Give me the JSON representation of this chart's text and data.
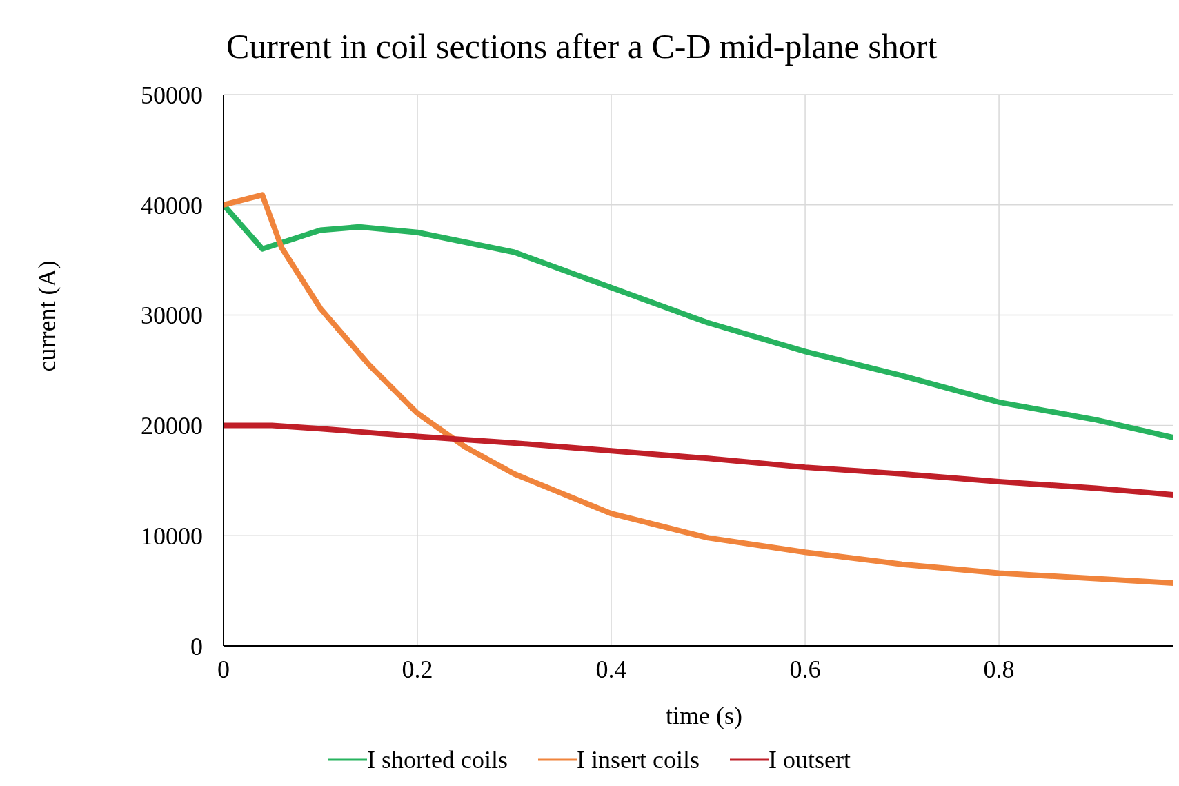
{
  "chart_data": {
    "type": "line",
    "title": "Current in coil sections after a C-D mid-plane short",
    "xlabel": "time (s)",
    "ylabel": "current (A)",
    "xlim": [
      0,
      0.98
    ],
    "xticks": [
      0,
      0.2,
      0.4,
      0.6,
      0.8
    ],
    "ylim": [
      0,
      50000
    ],
    "yticks": [
      0,
      10000,
      20000,
      30000,
      40000,
      50000
    ],
    "grid": true,
    "legend": "bottom",
    "marker": "none",
    "line_style": "solid",
    "series": [
      {
        "name": "I shorted coils",
        "color": "#27b35f",
        "x": [
          0,
          0.04,
          0.1,
          0.14,
          0.2,
          0.3,
          0.4,
          0.5,
          0.6,
          0.7,
          0.8,
          0.9,
          0.98
        ],
        "values": [
          40000,
          36000,
          37700,
          38000,
          37500,
          35700,
          32500,
          29300,
          26700,
          24500,
          22100,
          20500,
          18900
        ]
      },
      {
        "name": "I insert coils",
        "color": "#f0843c",
        "x": [
          0,
          0.04,
          0.06,
          0.1,
          0.15,
          0.2,
          0.25,
          0.3,
          0.4,
          0.5,
          0.6,
          0.7,
          0.8,
          0.9,
          0.98
        ],
        "values": [
          40000,
          40900,
          36100,
          30600,
          25500,
          21100,
          18000,
          15600,
          12000,
          9800,
          8500,
          7400,
          6600,
          6100,
          5700
        ]
      },
      {
        "name": "I outsert",
        "color": "#c01f28",
        "x": [
          0,
          0.05,
          0.1,
          0.2,
          0.3,
          0.4,
          0.5,
          0.6,
          0.7,
          0.8,
          0.9,
          0.98
        ],
        "values": [
          20000,
          20000,
          19700,
          19000,
          18400,
          17700,
          17000,
          16200,
          15600,
          14900,
          14300,
          13700
        ]
      }
    ]
  }
}
